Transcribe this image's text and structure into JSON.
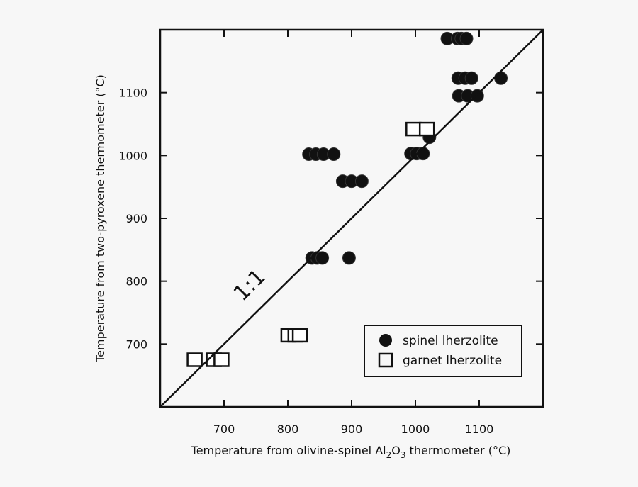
{
  "chart_data": {
    "type": "scatter",
    "title": "",
    "xlabel": "Temperature from olivine-spinel Al2O3 thermometer (°C)",
    "xlabel_parts": {
      "pre": "Temperature from olivine-spinel Al",
      "sub1": "2",
      "mid": "O",
      "sub2": "3",
      "post": " thermometer (°C)"
    },
    "ylabel": "Temperature from two-pyroxene thermometer (°C)",
    "xlim": [
      600,
      1200
    ],
    "ylim": [
      600,
      1200
    ],
    "xticks": [
      700,
      800,
      900,
      1000,
      1100
    ],
    "yticks": [
      700,
      800,
      900,
      1000,
      1100
    ],
    "grid": false,
    "legend_position": "lower right",
    "reference_line": {
      "label": "1:1",
      "from": [
        600,
        600
      ],
      "to": [
        1200,
        1200
      ]
    },
    "series": [
      {
        "name": "spinel lherzolite",
        "marker": "filled-circle",
        "color": "#111111",
        "points": [
          [
            1050,
            1186
          ],
          [
            1066,
            1186
          ],
          [
            1072,
            1186
          ],
          [
            1080,
            1186
          ],
          [
            1067,
            1123
          ],
          [
            1078,
            1123
          ],
          [
            1088,
            1123
          ],
          [
            1134,
            1123
          ],
          [
            1068,
            1095
          ],
          [
            1082,
            1095
          ],
          [
            1097,
            1095
          ],
          [
            1022,
            1029
          ],
          [
            993,
            1003
          ],
          [
            1002,
            1003
          ],
          [
            1012,
            1003
          ],
          [
            833,
            1002
          ],
          [
            844,
            1002
          ],
          [
            856,
            1002
          ],
          [
            872,
            1002
          ],
          [
            886,
            959
          ],
          [
            900,
            959
          ],
          [
            916,
            959
          ],
          [
            838,
            837
          ],
          [
            846,
            837
          ],
          [
            854,
            837
          ],
          [
            896,
            837
          ]
        ]
      },
      {
        "name": "garnet lherzolite",
        "marker": "open-square",
        "color": "#111111",
        "points": [
          [
            997,
            1042
          ],
          [
            1018,
            1042
          ],
          [
            801,
            714
          ],
          [
            812,
            714
          ],
          [
            819,
            714
          ],
          [
            654,
            675
          ],
          [
            684,
            675
          ],
          [
            696,
            675
          ]
        ]
      }
    ]
  },
  "legend": {
    "items": [
      {
        "label": "spinel lherzolite"
      },
      {
        "label": "garnet lherzolite"
      }
    ]
  },
  "annotation": {
    "text": "1:1"
  }
}
